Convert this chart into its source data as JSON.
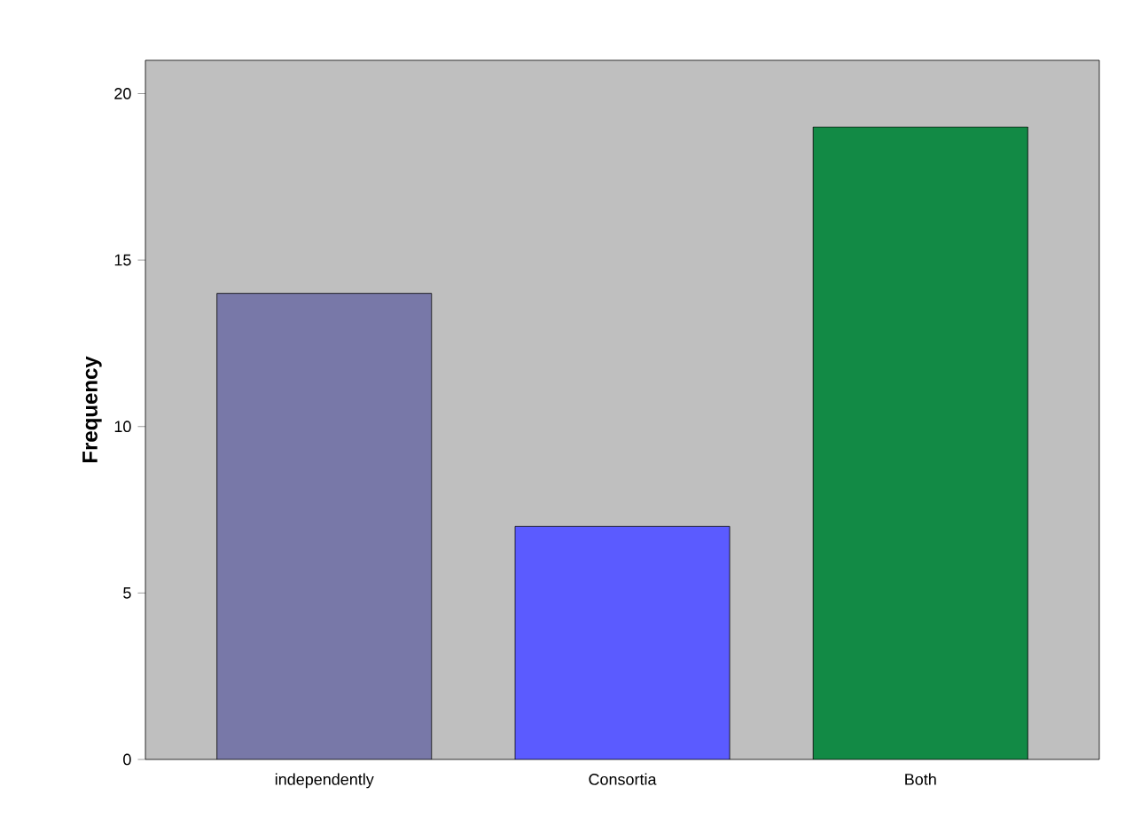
{
  "chart_data": {
    "type": "bar",
    "ylabel": "Frequency",
    "categories": [
      "independently",
      "Consortia",
      "Both"
    ],
    "values": [
      14,
      7,
      19
    ],
    "colors": [
      "#7878a8",
      "#5b5bff",
      "#128a45"
    ],
    "ylim": [
      0,
      21
    ],
    "yticks": [
      0,
      5,
      10,
      15,
      20
    ]
  }
}
